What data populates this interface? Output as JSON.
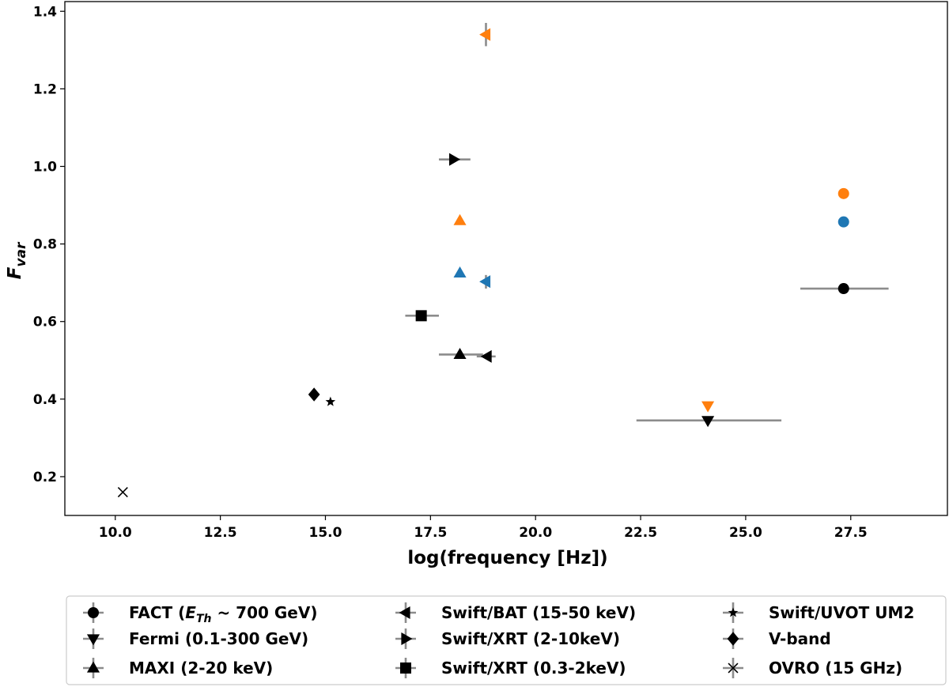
{
  "chart_data": {
    "type": "scatter",
    "title": "",
    "xlabel": "log(frequency [Hz])",
    "ylabel": "F_var",
    "ylabel_main": "F",
    "ylabel_sub": "var",
    "xlim": [
      8.8,
      29.8
    ],
    "ylim": [
      0.1,
      1.425
    ],
    "xticks": [
      10.0,
      12.5,
      15.0,
      17.5,
      20.0,
      22.5,
      25.0,
      27.5
    ],
    "xtick_labels": [
      "10.0",
      "12.5",
      "15.0",
      "17.5",
      "20.0",
      "22.5",
      "25.0",
      "27.5"
    ],
    "yticks": [
      0.2,
      0.4,
      0.6,
      0.8,
      1.0,
      1.2,
      1.4
    ],
    "ytick_labels": [
      "0.2",
      "0.4",
      "0.6",
      "0.8",
      "1.0",
      "1.2",
      "1.4"
    ],
    "colors": {
      "black": "#000000",
      "orange": "#ff7f0e",
      "blue": "#1f77b4",
      "errorbar": "#8c8c8c"
    },
    "series": [
      {
        "name": "FACT",
        "marker": "circle",
        "points": [
          {
            "x": 27.33,
            "y": 0.685,
            "color": "black",
            "xerr": [
              26.3,
              28.4
            ]
          },
          {
            "x": 27.33,
            "y": 0.93,
            "color": "orange"
          },
          {
            "x": 27.33,
            "y": 0.857,
            "color": "blue"
          }
        ]
      },
      {
        "name": "Fermi (0.1-300 GeV)",
        "marker": "triangle_down",
        "points": [
          {
            "x": 24.1,
            "y": 0.345,
            "color": "black",
            "xerr": [
              22.4,
              25.85
            ]
          },
          {
            "x": 24.1,
            "y": 0.383,
            "color": "orange"
          }
        ]
      },
      {
        "name": "MAXI (2-20 keV)",
        "marker": "triangle_up",
        "points": [
          {
            "x": 18.2,
            "y": 0.515,
            "color": "black",
            "xerr": [
              17.7,
              18.75
            ]
          },
          {
            "x": 18.2,
            "y": 0.86,
            "color": "orange"
          },
          {
            "x": 18.2,
            "y": 0.725,
            "color": "blue"
          }
        ]
      },
      {
        "name": "Swift/BAT (15-50 keV)",
        "marker": "triangle_left",
        "points": [
          {
            "x": 18.85,
            "y": 0.51,
            "color": "black",
            "xerr": [
              18.6,
              19.05
            ]
          },
          {
            "x": 18.82,
            "y": 1.34,
            "color": "orange",
            "yerr": [
              1.31,
              1.37
            ]
          },
          {
            "x": 18.82,
            "y": 0.703,
            "color": "blue",
            "yerr": [
              0.685,
              0.72
            ]
          }
        ]
      },
      {
        "name": "Swift/XRT (2-10keV)",
        "marker": "triangle_right",
        "points": [
          {
            "x": 18.05,
            "y": 1.018,
            "color": "black",
            "xerr": [
              17.7,
              18.45
            ]
          }
        ]
      },
      {
        "name": "Swift/XRT (0.3-2keV)",
        "marker": "square",
        "points": [
          {
            "x": 17.28,
            "y": 0.615,
            "color": "black",
            "xerr": [
              16.9,
              17.7
            ]
          }
        ]
      },
      {
        "name": "Swift/UVOT UM2",
        "marker": "star",
        "points": [
          {
            "x": 15.12,
            "y": 0.393,
            "color": "black"
          }
        ]
      },
      {
        "name": "V-band",
        "marker": "diamond",
        "points": [
          {
            "x": 14.73,
            "y": 0.412,
            "color": "black"
          }
        ]
      },
      {
        "name": "OVRO (15 GHz)",
        "marker": "x",
        "points": [
          {
            "x": 10.18,
            "y": 0.16,
            "color": "black"
          }
        ]
      }
    ],
    "legend": [
      {
        "label_main": "FACT (",
        "label_sub_base": "E",
        "label_sub": "Th",
        "label_tail": " ~ 700 GeV)",
        "marker": "circle"
      },
      {
        "label": "Fermi (0.1-300 GeV)",
        "marker": "triangle_down"
      },
      {
        "label": "MAXI (2-20 keV)",
        "marker": "triangle_up"
      },
      {
        "label": "Swift/BAT (15-50 keV)",
        "marker": "triangle_left"
      },
      {
        "label": "Swift/XRT (2-10keV)",
        "marker": "triangle_right"
      },
      {
        "label": "Swift/XRT (0.3-2keV)",
        "marker": "square"
      },
      {
        "label": "Swift/UVOT UM2",
        "marker": "star"
      },
      {
        "label": "V-band",
        "marker": "diamond"
      },
      {
        "label": "OVRO (15 GHz)",
        "marker": "x"
      }
    ],
    "legend_position": "below"
  }
}
